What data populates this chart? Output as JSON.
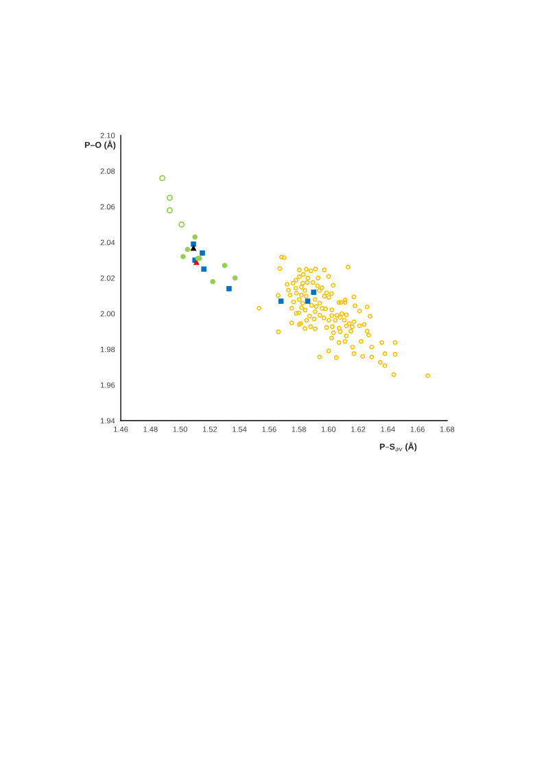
{
  "chart_data": {
    "type": "scatter",
    "xlabel": "P–S$_{av}$ (Å)",
    "ylabel": "P–O (Å)",
    "xlim": [
      1.46,
      1.68
    ],
    "ylim": [
      1.94,
      2.1
    ],
    "xticks": [
      {
        "value": 1.46,
        "label": "1.46"
      },
      {
        "value": 1.48,
        "label": "1.48"
      },
      {
        "value": 1.5,
        "label": "1.50"
      },
      {
        "value": 1.52,
        "label": "1.52"
      },
      {
        "value": 1.54,
        "label": "1.54"
      },
      {
        "value": 1.56,
        "label": "1.56"
      },
      {
        "value": 1.58,
        "label": "1.58"
      },
      {
        "value": 1.6,
        "label": "1.60"
      },
      {
        "value": 1.62,
        "label": "1.62"
      },
      {
        "value": 1.64,
        "label": "1.64"
      },
      {
        "value": 1.66,
        "label": "1.66"
      },
      {
        "value": 1.68,
        "label": "1.68"
      }
    ],
    "yticks": [
      {
        "value": 1.94,
        "label": "1.94"
      },
      {
        "value": 1.96,
        "label": "1.96"
      },
      {
        "value": 1.98,
        "label": "1.98"
      },
      {
        "value": 2.0,
        "label": "2.00"
      },
      {
        "value": 2.02,
        "label": "2.02"
      },
      {
        "value": 2.04,
        "label": "2.04"
      },
      {
        "value": 2.06,
        "label": "2.06"
      },
      {
        "value": 2.08,
        "label": "2.08"
      },
      {
        "value": 2.1,
        "label": "2.10"
      }
    ],
    "grid": false,
    "series": [
      {
        "color": "#ffc000",
        "marker": "circle",
        "x": [
          1.5683,
          1.5701,
          1.5672,
          1.5532,
          1.5661,
          1.5663,
          1.6132,
          1.5803,
          1.585,
          1.5881,
          1.5912,
          1.5972,
          1.6001,
          1.593,
          1.583,
          1.5803,
          1.5861,
          1.5781,
          1.5721,
          1.5761,
          1.5826,
          1.5857,
          1.5895,
          1.6032,
          1.573,
          1.5779,
          1.5818,
          1.5841,
          1.5926,
          1.5956,
          1.5938,
          1.5987,
          1.6021,
          1.5741,
          1.5784,
          1.5818,
          1.5849,
          1.5803,
          1.5764,
          1.5826,
          1.591,
          1.5941,
          1.5972,
          1.6002,
          1.5886,
          1.5918,
          1.5818,
          1.5843,
          1.591,
          1.5956,
          1.5979,
          1.5752,
          1.5783,
          1.58,
          1.5872,
          1.5903,
          1.5852,
          1.5941,
          1.5969,
          1.6022,
          1.6022,
          1.6057,
          1.6003,
          1.6046,
          1.6079,
          1.6107,
          1.607,
          1.6084,
          1.6112,
          1.6112,
          1.5752,
          1.5803,
          1.5812,
          1.5841,
          1.5879,
          1.591,
          1.5987,
          1.6026,
          1.6072,
          1.6121,
          1.6033,
          1.6079,
          1.6021,
          1.607,
          1.6112,
          1.6001,
          1.594,
          1.6052,
          1.6171,
          1.6179,
          1.626,
          1.6209,
          1.628,
          1.612,
          1.609,
          1.6171,
          1.614,
          1.624,
          1.6209,
          1.616,
          1.6151,
          1.626,
          1.6271,
          1.612,
          1.622,
          1.636,
          1.6449,
          1.6162,
          1.6291,
          1.6171,
          1.638,
          1.6449,
          1.6231,
          1.6291,
          1.6349,
          1.638,
          1.644,
          1.6669
        ],
        "values": [
          2.0318,
          2.0314,
          2.0253,
          2.003,
          2.0102,
          1.9898,
          2.0261,
          2.0245,
          2.0249,
          2.024,
          2.025,
          2.0245,
          2.0209,
          2.02,
          2.022,
          2.0207,
          2.02,
          2.0188,
          2.0165,
          2.0171,
          2.0171,
          2.0175,
          2.0175,
          2.0159,
          2.0132,
          2.0143,
          2.0149,
          2.013,
          2.0156,
          2.0145,
          2.013,
          2.0117,
          2.0112,
          2.0104,
          2.0115,
          2.0104,
          2.0098,
          2.0079,
          2.0066,
          2.0059,
          2.0079,
          2.0059,
          2.0098,
          2.0091,
          2.0047,
          2.004,
          2.0034,
          2.002,
          2.0011,
          2.003,
          2.0027,
          2.003,
          2.0002,
          2.0004,
          1.9986,
          1.997,
          1.9963,
          1.9991,
          1.9976,
          2.0021,
          1.9989,
          1.9991,
          1.9963,
          1.9963,
          1.9979,
          1.9963,
          2.0063,
          2.0063,
          2.0063,
          2.0076,
          1.9948,
          1.994,
          1.9944,
          1.9917,
          1.9927,
          1.9915,
          1.9922,
          1.9927,
          1.9918,
          1.9931,
          1.9893,
          1.9899,
          1.9863,
          1.9838,
          1.9844,
          1.9791,
          1.9757,
          1.9753,
          2.0094,
          2.0044,
          2.0038,
          2.0015,
          1.9985,
          1.9993,
          2.0,
          1.9954,
          1.9944,
          1.9939,
          1.9932,
          1.9927,
          1.9902,
          1.9902,
          1.9879,
          1.9875,
          1.9844,
          1.9838,
          1.9838,
          1.9813,
          1.9813,
          1.9776,
          1.9776,
          1.9772,
          1.9761,
          1.9757,
          1.9727,
          1.9708,
          1.9658,
          1.9652
        ]
      },
      {
        "color": "#92d050",
        "marker": "circle",
        "x": [
          1.488,
          1.493,
          1.493,
          1.501
        ],
        "values": [
          2.076,
          2.065,
          2.058,
          2.05
        ]
      },
      {
        "color": "#92d050",
        "marker": "circle",
        "x": [
          1.51,
          1.505,
          1.502,
          1.512,
          1.513,
          1.53,
          1.537,
          1.522
        ],
        "values": [
          2.043,
          2.036,
          2.032,
          2.031,
          2.031,
          2.027,
          2.02,
          2.018
        ]
      },
      {
        "color": "#0070c0",
        "marker": "square",
        "x": [
          1.509,
          1.515,
          1.51,
          1.516,
          1.533,
          1.568,
          1.59,
          1.586
        ],
        "values": [
          2.039,
          2.034,
          2.03,
          2.025,
          2.014,
          2.007,
          2.012,
          2.007
        ]
      },
      {
        "color": "#000000",
        "marker": "triangle",
        "x": [
          1.509
        ],
        "values": [
          2.037
        ]
      },
      {
        "color": "#ff0000",
        "marker": "triangle",
        "x": [
          1.511
        ],
        "values": [
          2.029
        ]
      }
    ]
  }
}
